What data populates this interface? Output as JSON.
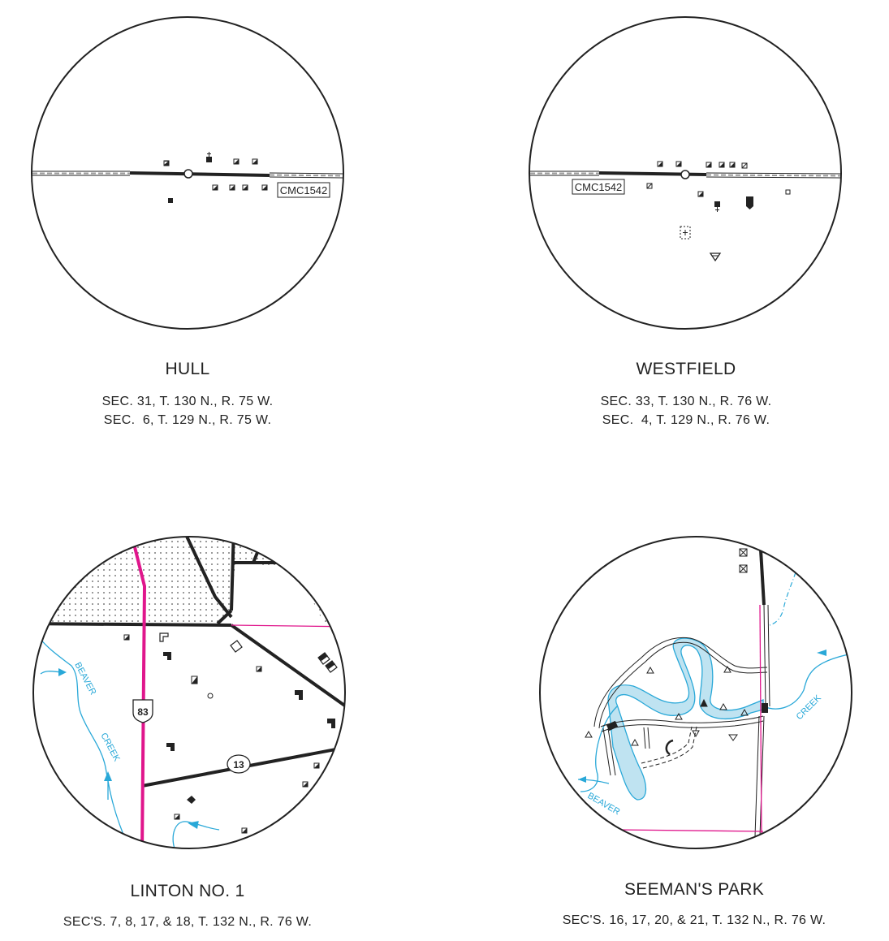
{
  "panels": [
    {
      "title": "HULL",
      "lines": [
        "SEC. 31, T. 130 N., R. 75 W.",
        "SEC.  6, T. 129 N., R. 75 W."
      ],
      "labels": {
        "marker": "CMC1542"
      }
    },
    {
      "title": "WESTFIELD",
      "lines": [
        "SEC. 33, T. 130 N., R. 76 W.",
        "SEC.  4, T. 129 N., R. 76 W."
      ],
      "labels": {
        "marker": "CMC1542"
      }
    },
    {
      "title": "LINTON NO. 1",
      "lines": [
        "SEC'S. 7, 8, 17, & 18, T. 132 N., R. 76 W."
      ],
      "labels": {
        "route_us": "83",
        "route_state": "13",
        "creek_1": "BEAVER",
        "creek_2": "CREEK"
      }
    },
    {
      "title": "SEEMAN'S PARK",
      "lines": [
        "SEC'S. 16, 17, 20, & 21, T. 132 N., R. 76 W."
      ],
      "labels": {
        "creek_1": "BEAVER",
        "creek_2": "CREEK"
      }
    }
  ],
  "colors": {
    "line": "#222222",
    "water": "#29a8d8",
    "water_fill": "#bfe3f1",
    "highway": "#e0168c",
    "boundary": "#e0168c"
  }
}
